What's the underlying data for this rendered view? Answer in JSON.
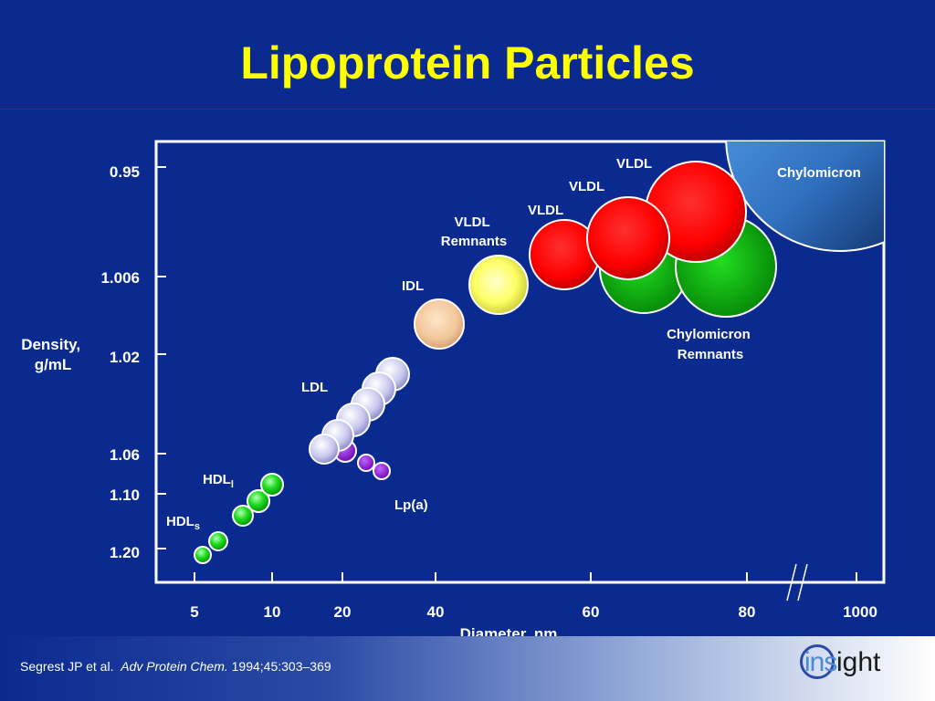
{
  "slide": {
    "title": "Lipoprotein Particles",
    "citation": {
      "authors": "Segrest JP et al.",
      "journal": "Adv Protein Chem.",
      "ref": "1994;45:303–369"
    },
    "logo": {
      "part1": "ins",
      "part2": "ight"
    }
  },
  "colors": {
    "background": "#0b2a8f",
    "title": "#ffff00",
    "text": "#ffffff",
    "axis": "#ffffff",
    "title_rule": "#b0002a",
    "hdl": "#22dd22",
    "lpa": "#8a00d4",
    "ldl": "#c8c8ee",
    "idl": "#f2c69a",
    "vldl_remnants": "#ffff66",
    "vldl": "#ff1010",
    "chylomicron_remnants": "#10c010",
    "chylomicron": "#3f8ee0"
  },
  "chart_data": {
    "type": "scatter",
    "xlabel": "Diameter, nm",
    "ylabel": "Density, g/mL",
    "x_ticks": [
      "5",
      "10",
      "20",
      "40",
      "60",
      "80",
      "1000"
    ],
    "y_ticks": [
      "0.95",
      "1.006",
      "1.02",
      "1.06",
      "1.10",
      "1.20"
    ],
    "x_axis_break_between": [
      "80",
      "1000"
    ],
    "grid": false,
    "series": [
      {
        "name": "HDLs",
        "label": "HDL",
        "sub": "s",
        "color": "#22dd22",
        "points": [
          {
            "x": "5",
            "y": 1.2
          },
          {
            "x": "7",
            "y": 1.18
          },
          {
            "x": "9",
            "y": 1.15
          }
        ]
      },
      {
        "name": "HDLl",
        "label": "HDL",
        "sub": "l",
        "color": "#22dd22",
        "points": [
          {
            "x": "10",
            "y": 1.12
          },
          {
            "x": "11",
            "y": 1.09
          }
        ]
      },
      {
        "name": "Lp(a)",
        "label": "Lp(a)",
        "color": "#8a00d4",
        "points": [
          {
            "x": "20",
            "y": 1.055
          },
          {
            "x": "24",
            "y": 1.065
          },
          {
            "x": "28",
            "y": 1.07
          }
        ]
      },
      {
        "name": "LDL",
        "label": "LDL",
        "color": "#c8c8ee",
        "points": [
          {
            "x": "18",
            "y": 1.055
          },
          {
            "x": "20",
            "y": 1.05
          },
          {
            "x": "22",
            "y": 1.045
          },
          {
            "x": "24",
            "y": 1.035
          },
          {
            "x": "26",
            "y": 1.03
          },
          {
            "x": "28",
            "y": 1.025
          }
        ]
      },
      {
        "name": "IDL",
        "label": "IDL",
        "color": "#f2c69a",
        "points": [
          {
            "x": "35",
            "y": 1.012
          }
        ]
      },
      {
        "name": "VLDL Remnants",
        "label": "VLDL Remnants",
        "color": "#ffff66",
        "points": [
          {
            "x": "50",
            "y": 1.006
          }
        ]
      },
      {
        "name": "VLDL",
        "label": "VLDL",
        "color": "#ff1010",
        "points": [
          {
            "x": "60",
            "y": 0.99
          },
          {
            "x": "65",
            "y": 0.98
          },
          {
            "x": "75",
            "y": 0.97
          }
        ]
      },
      {
        "name": "Chylomicron Remnants",
        "label": "Chylomicron Remnants",
        "color": "#10c010",
        "points": [
          {
            "x": "70",
            "y": 1.0
          },
          {
            "x": "80",
            "y": 1.0
          }
        ]
      },
      {
        "name": "Chylomicron",
        "label": "Chylomicron",
        "color": "#3f8ee0",
        "points": [
          {
            "x": "1000",
            "y": 0.95
          }
        ]
      }
    ]
  }
}
